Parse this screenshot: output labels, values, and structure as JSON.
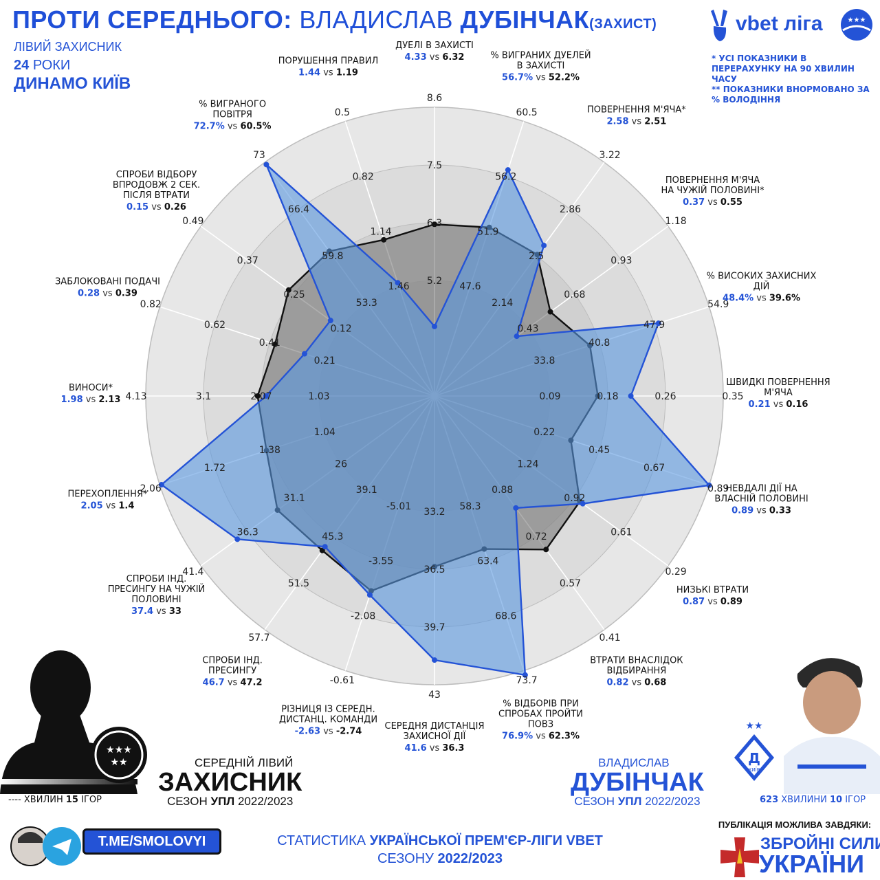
{
  "header": {
    "part1": "ПРОТИ СЕРЕДНЬОГО:",
    "part2": "ВЛАДИСЛАВ",
    "part3": "ДУБІНЧАК",
    "part4": "(ЗАХИСТ)",
    "league_logo_text": "vbet ліга"
  },
  "player": {
    "position": "ЛІВИЙ ЗАХИСНИК",
    "age_num": "24",
    "age_word": "РОКИ",
    "club": "ДИНАМО КИЇВ"
  },
  "notes": {
    "note1": "* УСІ ПОКАЗНИКИ В ПЕРЕРАХУНКУ НА 90 ХВИЛИН ЧАСУ",
    "note2": "** ПОКАЗНИКИ ВНОРМОВАНО ЗА % ВОЛОДІННЯ"
  },
  "colors": {
    "player": "#2453d6",
    "average": "#111111",
    "player_fill": "#5a98e0",
    "avg_fill": "#7a7a7a"
  },
  "chart_data": {
    "type": "radar",
    "series": [
      {
        "name": "ВЛАДИСЛАВ ДУБІНЧАК",
        "values": [
          4.33,
          56.7,
          2.58,
          0.37,
          48.4,
          0.21,
          0.89,
          0.87,
          0.82,
          76.9,
          41.6,
          -2.63,
          46.7,
          37.4,
          2.05,
          1.98,
          0.28,
          0.15,
          72.7,
          1.44
        ]
      },
      {
        "name": "СЕРЕДНІЙ ЛІВИЙ ЗАХИСНИК",
        "values": [
          6.32,
          52.2,
          2.51,
          0.55,
          39.6,
          0.16,
          0.33,
          0.89,
          0.68,
          62.3,
          36.3,
          -2.74,
          47.2,
          33,
          1.4,
          2.13,
          0.39,
          0.26,
          60.5,
          1.19
        ]
      }
    ],
    "axes": [
      {
        "label": "ДУЕЛІ В ЗАХИСТІ",
        "p": "4.33",
        "a": "6.32",
        "ticks": [
          "5.2",
          "6.3",
          "7.5",
          "8.6"
        ],
        "min": 4.1,
        "max": 8.6,
        "invert": false
      },
      {
        "label": "% ВИГРАНИХ ДУЕЛЕЙ В ЗАХИСТІ",
        "p": "56.7%",
        "a": "52.2%",
        "ticks": [
          "47.6",
          "51.9",
          "56.2",
          "60.5"
        ],
        "min": 43.3,
        "max": 60.5,
        "invert": false
      },
      {
        "label": "ПОВЕРНЕННЯ М'ЯЧА*",
        "p": "2.58",
        "a": "2.51",
        "ticks": [
          "2.14",
          "2.5",
          "2.86",
          "3.22"
        ],
        "min": 1.78,
        "max": 3.22,
        "invert": false
      },
      {
        "label": "ПОВЕРНЕННЯ М'ЯЧА НА ЧУЖІЙ ПОЛОВИНІ*",
        "p": "0.37",
        "a": "0.55",
        "ticks": [
          "0.43",
          "0.68",
          "0.93",
          "1.18"
        ],
        "min": 0.18,
        "max": 1.18,
        "invert": false
      },
      {
        "label": "% ВИСОКИХ ЗАХИСНИХ ДІЙ",
        "p": "48.4%",
        "a": "39.6%",
        "ticks": [
          "33.8",
          "40.8",
          "47.9",
          "54.9"
        ],
        "min": 26.7,
        "max": 54.9,
        "invert": false
      },
      {
        "label": "ШВИДКІ ПОВЕРНЕННЯ М'ЯЧА",
        "p": "0.21",
        "a": "0.16",
        "ticks": [
          "0.09",
          "0.18",
          "0.26",
          "0.35"
        ],
        "min": 0.0,
        "max": 0.35,
        "invert": false
      },
      {
        "label": "НЕВДАЛІ ДІЇ НА ВЛАСНІЙ ПОЛОВИНІ",
        "p": "0.89",
        "a": "0.33",
        "ticks": [
          "0.22",
          "0.45",
          "0.67",
          "0.89"
        ],
        "min": 0.0,
        "max": 0.89,
        "invert": false
      },
      {
        "label": "НИЗЬКІ ВТРАТИ",
        "p": "0.87",
        "a": "0.89",
        "ticks": [
          "1.24",
          "0.92",
          "0.61",
          "0.29"
        ],
        "min": 1.56,
        "max": 0.29,
        "invert": true
      },
      {
        "label": "ВТРАТИ ВНАСЛІДОК ВІДБИРАННЯ",
        "p": "0.82",
        "a": "0.68",
        "ticks": [
          "0.88",
          "0.72",
          "0.57",
          "0.41"
        ],
        "min": 1.04,
        "max": 0.41,
        "invert": true
      },
      {
        "label": "% ВІДБОРІВ ПРИ СПРОБАХ ПРОЙТИ ПОВЗ",
        "p": "76.9%",
        "a": "62.3%",
        "ticks": [
          "58.3",
          "63.4",
          "68.6",
          "73.7"
        ],
        "min": 53.1,
        "max": 73.7,
        "invert": false
      },
      {
        "label": "СЕРЕДНЯ ДИСТАНЦІЯ ЗАХИСНОЇ ДІЇ",
        "p": "41.6",
        "a": "36.3",
        "ticks": [
          "33.2",
          "36.5",
          "39.7",
          "43"
        ],
        "min": 29.9,
        "max": 43,
        "invert": false
      },
      {
        "label": "РІЗНИЦЯ ІЗ СЕРЕДН. ДИСТАНЦ. КОМАНДИ",
        "p": "-2.63",
        "a": "-2.74",
        "ticks": [
          "-5.01",
          "-3.55",
          "-2.08",
          "-0.61"
        ],
        "min": -6.48,
        "max": -0.61,
        "invert": false
      },
      {
        "label": "СПРОБИ ІНД. ПРЕСИНГУ",
        "p": "46.7",
        "a": "47.2",
        "ticks": [
          "39.1",
          "45.3",
          "51.5",
          "57.7"
        ],
        "min": 32.9,
        "max": 57.7,
        "invert": false
      },
      {
        "label": "СПРОБИ ІНД. ПРЕСИНГУ НА ЧУЖІЙ ПОЛОВИНІ",
        "p": "37.4",
        "a": "33",
        "ticks": [
          "26",
          "31.1",
          "36.3",
          "41.4"
        ],
        "min": 20.9,
        "max": 41.4,
        "invert": false
      },
      {
        "label": "ПЕРЕХОПЛЕННЯ*",
        "p": "2.05",
        "a": "1.4",
        "ticks": [
          "1.04",
          "1.38",
          "1.72",
          "2.06"
        ],
        "min": 0.7,
        "max": 2.06,
        "invert": false
      },
      {
        "label": "ВИНОСИ*",
        "p": "1.98",
        "a": "2.13",
        "ticks": [
          "1.03",
          "2.07",
          "3.1",
          "4.13"
        ],
        "min": 0.0,
        "max": 4.13,
        "invert": false
      },
      {
        "label": "ЗАБЛОКОВАНІ ПОДАЧІ",
        "p": "0.28",
        "a": "0.39",
        "ticks": [
          "0.21",
          "0.41",
          "0.62",
          "0.82"
        ],
        "min": 0.0,
        "max": 0.82,
        "invert": false
      },
      {
        "label": "СПРОБИ ВІДБОРУ ВПРОДОВЖ 2 СЕК. ПІСЛЯ ВТРАТИ",
        "p": "0.15",
        "a": "0.26",
        "ticks": [
          "0.12",
          "0.25",
          "0.37",
          "0.49"
        ],
        "min": 0.0,
        "max": 0.49,
        "invert": false
      },
      {
        "label": "% ВИГРАНОГО ПОВІТРЯ",
        "p": "72.7%",
        "a": "60.5%",
        "ticks": [
          "53.3",
          "59.8",
          "66.4",
          "73"
        ],
        "min": 46.7,
        "max": 73,
        "invert": false
      },
      {
        "label": "ПОРУШЕННЯ ПРАВИЛ",
        "p": "1.44",
        "a": "1.19",
        "ticks": [
          "1.46",
          "1.14",
          "0.82",
          "0.5"
        ],
        "min": 1.78,
        "max": 0.5,
        "invert": true
      }
    ]
  },
  "avg_block": {
    "line1": "СЕРЕДНІЙ ЛІВИЙ",
    "line2": "ЗАХИСНИК",
    "season_pre": "СЕЗОН",
    "season_bold": "УПЛ",
    "season_years": "2022/2023",
    "minutes": "---- ХВИЛИН",
    "games_num": "15",
    "games_word": "ІГОР"
  },
  "player_block": {
    "line1": "ВЛАДИСЛАВ",
    "line2": "ДУБІНЧАК",
    "season_pre": "СЕЗОН",
    "season_bold": "УПЛ",
    "season_years": "2022/2023",
    "club_badge": "КИЇВ",
    "minutes_num": "623",
    "minutes_word": "ХВИЛИНИ",
    "games_num": "10",
    "games_word": "ІГОР"
  },
  "footer": {
    "telegram": "T.ME/SMOLOVYI",
    "stats_pre": "СТАТИСТИКА",
    "stats_bold": "УКРАЇНСЬКОЇ ПРЕМ'ЄР-ЛІГИ VBET",
    "season_pre": "СЕЗОНУ",
    "season_bold": "2022/2023",
    "support_line": "ПУБЛІКАЦІЯ МОЖЛИВА ЗАВДЯКИ:",
    "forces1": "ЗБРОЙНІ СИЛИ",
    "forces2": "УКРАЇНИ"
  }
}
